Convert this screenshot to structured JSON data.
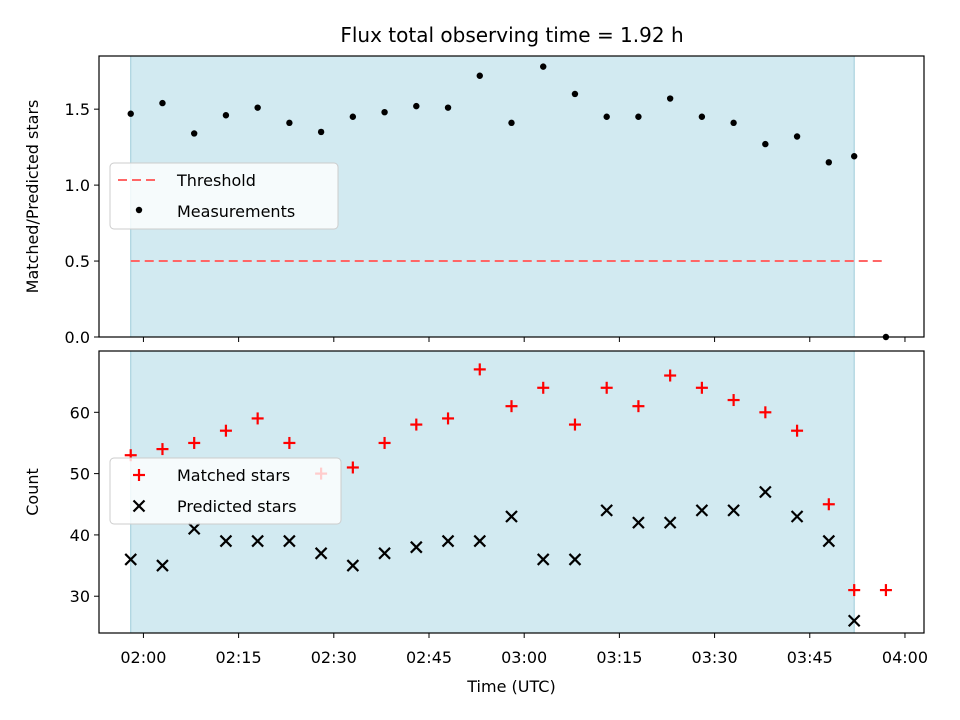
{
  "chart_data": [
    {
      "type": "scatter",
      "title": "Flux total observing time = 1.92 h",
      "xlabel": "",
      "ylabel": "Matched/Predicted stars",
      "ylim": [
        0,
        1.85
      ],
      "yticks": [
        "0.0",
        "0.5",
        "1.0",
        "1.5"
      ],
      "ytick_values": [
        0,
        0.5,
        1.0,
        1.5
      ],
      "shaded_span": [
        "01:58",
        "03:52"
      ],
      "shade_color": "#add8e6",
      "legend_position": "upper-left",
      "series": [
        {
          "name": "Threshold",
          "style": "dashed-line",
          "color": "#ff6666",
          "x": [
            "01:58",
            "03:57"
          ],
          "y": [
            0.5,
            0.5
          ]
        },
        {
          "name": "Measurements",
          "style": "dot",
          "color": "#000000",
          "x": [
            "01:58",
            "02:03",
            "02:08",
            "02:13",
            "02:18",
            "02:23",
            "02:28",
            "02:33",
            "02:38",
            "02:43",
            "02:48",
            "02:53",
            "02:58",
            "03:03",
            "03:08",
            "03:13",
            "03:18",
            "03:23",
            "03:28",
            "03:33",
            "03:38",
            "03:43",
            "03:48",
            "03:52",
            "03:57"
          ],
          "y": [
            1.47,
            1.54,
            1.34,
            1.46,
            1.51,
            1.41,
            1.35,
            1.45,
            1.48,
            1.52,
            1.51,
            1.72,
            1.41,
            1.78,
            1.6,
            1.45,
            1.45,
            1.57,
            1.45,
            1.41,
            1.27,
            1.32,
            1.15,
            1.19,
            0.0
          ]
        }
      ]
    },
    {
      "type": "scatter",
      "title": "",
      "xlabel": "Time (UTC)",
      "ylabel": "Count",
      "ylim": [
        24,
        70
      ],
      "yticks": [
        "30",
        "40",
        "50",
        "60"
      ],
      "ytick_values": [
        30,
        40,
        50,
        60
      ],
      "xlim": [
        "01:53",
        "04:03"
      ],
      "xticks": [
        "02:00",
        "02:15",
        "02:30",
        "02:45",
        "03:00",
        "03:15",
        "03:30",
        "03:45",
        "04:00"
      ],
      "shaded_span": [
        "01:58",
        "03:52"
      ],
      "shade_color": "#add8e6",
      "legend_position": "center-left",
      "series": [
        {
          "name": "Matched stars",
          "marker": "plus",
          "color": "#ff0000",
          "x": [
            "01:58",
            "02:03",
            "02:08",
            "02:13",
            "02:18",
            "02:23",
            "02:28",
            "02:33",
            "02:38",
            "02:43",
            "02:48",
            "02:53",
            "02:58",
            "03:03",
            "03:08",
            "03:13",
            "03:18",
            "03:23",
            "03:28",
            "03:33",
            "03:38",
            "03:43",
            "03:48",
            "03:52",
            "03:57"
          ],
          "y": [
            53,
            54,
            55,
            57,
            59,
            55,
            50,
            51,
            55,
            58,
            59,
            67,
            61,
            64,
            58,
            64,
            61,
            66,
            64,
            62,
            60,
            57,
            45,
            31,
            31
          ]
        },
        {
          "name": "Predicted stars",
          "marker": "x",
          "color": "#000000",
          "x": [
            "01:58",
            "02:03",
            "02:08",
            "02:13",
            "02:18",
            "02:23",
            "02:28",
            "02:33",
            "02:38",
            "02:43",
            "02:48",
            "02:53",
            "02:58",
            "03:03",
            "03:08",
            "03:13",
            "03:18",
            "03:23",
            "03:28",
            "03:33",
            "03:38",
            "03:43",
            "03:48",
            "03:52"
          ],
          "y": [
            36,
            35,
            41,
            39,
            39,
            39,
            37,
            35,
            37,
            38,
            39,
            39,
            43,
            36,
            36,
            44,
            42,
            42,
            44,
            44,
            47,
            43,
            39,
            26
          ]
        }
      ]
    }
  ]
}
